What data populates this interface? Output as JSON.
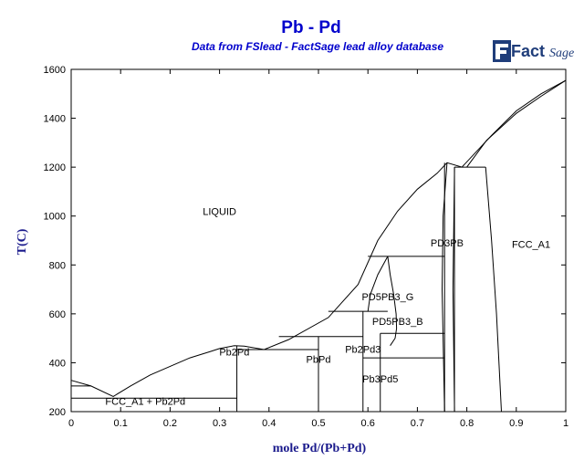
{
  "header": {
    "title": "Pb - Pd",
    "subtitle": "Data from FSlead - FactSage lead alloy database"
  },
  "logo": {
    "text_fact": "Fact",
    "text_sage": "Sage",
    "icon": "factsage-logo"
  },
  "chart_data": {
    "type": "phase-diagram",
    "xlabel": "mole Pd/(Pb+Pd)",
    "ylabel": "T(C)",
    "xlim": [
      0,
      1
    ],
    "ylim": [
      200,
      1600
    ],
    "xticks": [
      "0",
      "0.1",
      "0.2",
      "0.3",
      "0.4",
      "0.5",
      "0.6",
      "0.7",
      "0.8",
      "0.9",
      "1"
    ],
    "yticks": [
      "200",
      "400",
      "600",
      "800",
      "1000",
      "1200",
      "1400",
      "1600"
    ],
    "grid": false,
    "regions": [
      {
        "label": "LIQUID",
        "x": 0.3,
        "y": 1005
      },
      {
        "label": "PD3PB",
        "x": 0.76,
        "y": 875
      },
      {
        "label": "FCC_A1",
        "x": 0.93,
        "y": 870
      },
      {
        "label": "PD5PB3_G",
        "x": 0.64,
        "y": 655
      },
      {
        "label": "PD5PB3_B",
        "x": 0.66,
        "y": 555
      },
      {
        "label": "Pb2Pd",
        "x": 0.33,
        "y": 430
      },
      {
        "label": "PbPd",
        "x": 0.5,
        "y": 400
      },
      {
        "label": "Pb2Pd3",
        "x": 0.59,
        "y": 440
      },
      {
        "label": "Pb3Pd5",
        "x": 0.625,
        "y": 320
      },
      {
        "label": "FCC_A1 + Pb2Pd",
        "x": 0.15,
        "y": 228
      }
    ],
    "liquidus": [
      [
        0,
        328
      ],
      [
        0.04,
        305
      ],
      [
        0.085,
        262
      ],
      [
        0.12,
        305
      ],
      [
        0.16,
        350
      ],
      [
        0.2,
        385
      ],
      [
        0.24,
        420
      ],
      [
        0.28,
        445
      ],
      [
        0.3,
        458
      ],
      [
        0.33,
        470
      ],
      [
        0.35,
        468
      ],
      [
        0.39,
        454
      ],
      [
        0.44,
        495
      ],
      [
        0.52,
        585
      ],
      [
        0.58,
        720
      ],
      [
        0.62,
        900
      ],
      [
        0.66,
        1020
      ],
      [
        0.7,
        1110
      ],
      [
        0.74,
        1175
      ],
      [
        0.76,
        1218
      ],
      [
        0.79,
        1200
      ],
      [
        0.85,
        1330
      ],
      [
        0.9,
        1430
      ],
      [
        0.95,
        1500
      ],
      [
        1.0,
        1555
      ]
    ],
    "solidus": [
      [
        0.8,
        1200
      ],
      [
        0.84,
        1310
      ],
      [
        0.9,
        1420
      ],
      [
        0.95,
        1490
      ],
      [
        1.0,
        1555
      ]
    ],
    "segments": [
      [
        [
          0.0,
          255
        ],
        [
          0.335,
          255
        ]
      ],
      [
        [
          0.335,
          200
        ],
        [
          0.335,
          470
        ]
      ],
      [
        [
          0.335,
          454
        ],
        [
          0.5,
          454
        ]
      ],
      [
        [
          0.5,
          200
        ],
        [
          0.5,
          507
        ]
      ],
      [
        [
          0.42,
          507
        ],
        [
          0.59,
          507
        ]
      ],
      [
        [
          0.59,
          200
        ],
        [
          0.59,
          610
        ]
      ],
      [
        [
          0.52,
          610
        ],
        [
          0.64,
          610
        ]
      ],
      [
        [
          0.59,
          420
        ],
        [
          0.755,
          420
        ]
      ],
      [
        [
          0.625,
          200
        ],
        [
          0.625,
          520
        ]
      ],
      [
        [
          0.625,
          520
        ],
        [
          0.755,
          520
        ]
      ],
      [
        [
          0.6,
          835
        ],
        [
          0.755,
          835
        ]
      ],
      [
        [
          0.755,
          200
        ],
        [
          0.755,
          1218
        ]
      ],
      [
        [
          0.775,
          200
        ],
        [
          0.775,
          1200
        ]
      ],
      [
        [
          0.775,
          1200
        ],
        [
          0.838,
          1200
        ]
      ]
    ],
    "curves": [
      [
        [
          0.64,
          835
        ],
        [
          0.645,
          760
        ],
        [
          0.652,
          680
        ],
        [
          0.657,
          600
        ],
        [
          0.658,
          540
        ],
        [
          0.655,
          500
        ],
        [
          0.645,
          470
        ]
      ],
      [
        [
          0.64,
          835
        ],
        [
          0.62,
          760
        ],
        [
          0.605,
          680
        ],
        [
          0.6,
          610
        ]
      ],
      [
        [
          0.755,
          200
        ],
        [
          0.75,
          700
        ],
        [
          0.752,
          1000
        ],
        [
          0.76,
          1218
        ]
      ],
      [
        [
          0.775,
          200
        ],
        [
          0.772,
          700
        ],
        [
          0.775,
          1200
        ]
      ],
      [
        [
          0.838,
          1200
        ],
        [
          0.85,
          900
        ],
        [
          0.86,
          600
        ],
        [
          0.87,
          200
        ]
      ],
      [
        [
          0.04,
          305
        ],
        [
          0.0,
          305
        ]
      ]
    ]
  }
}
